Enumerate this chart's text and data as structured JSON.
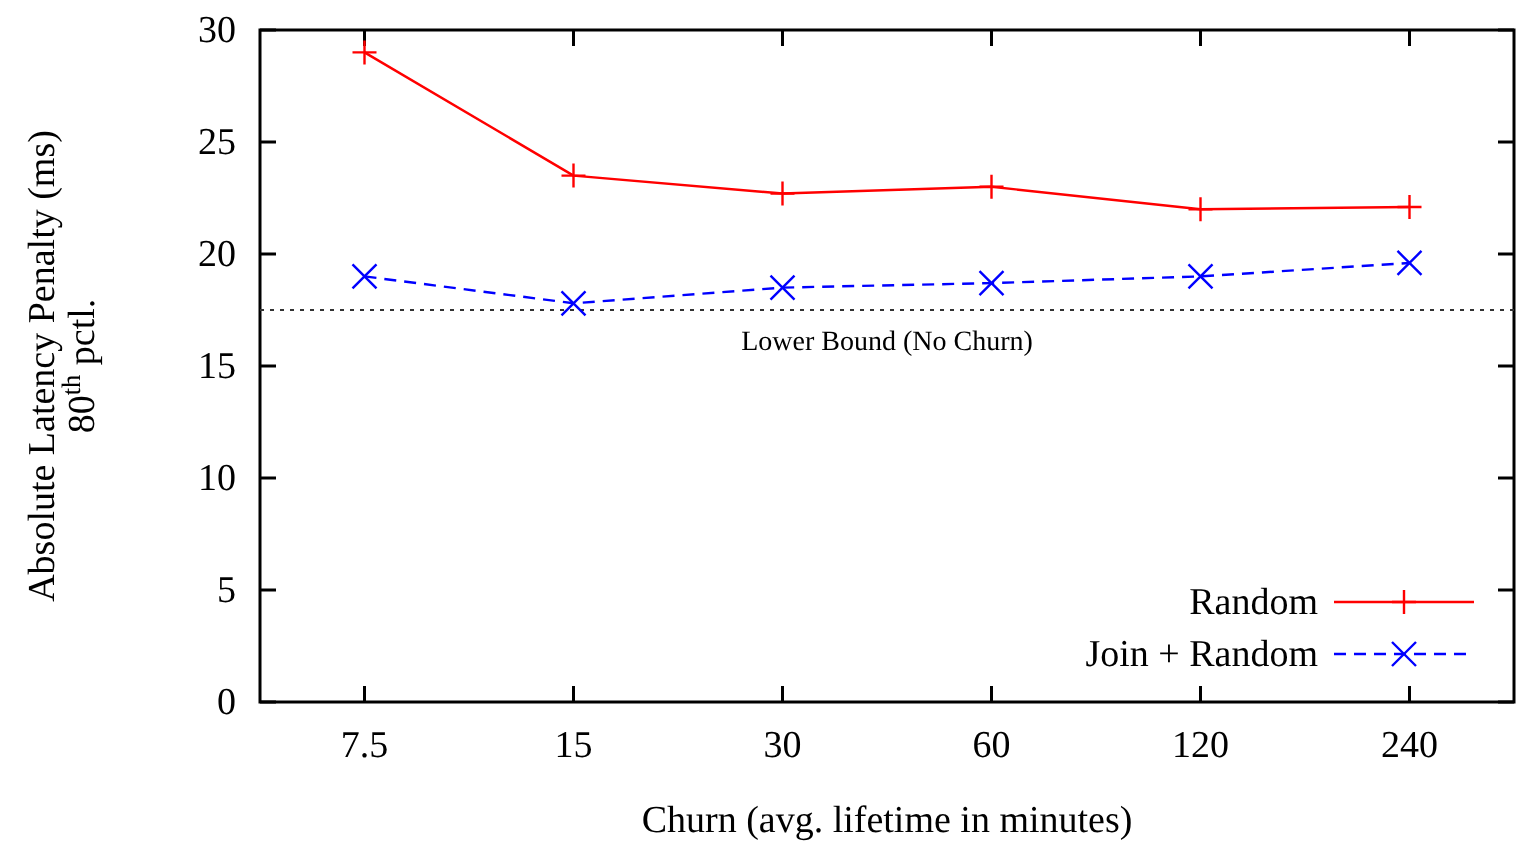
{
  "chart_data": {
    "type": "line",
    "xlabel": "Churn (avg. lifetime in minutes)",
    "ylabel": "Absolute Latency Penalty (ms)\n80$^{th}$ pctl.",
    "categories": [
      "7.5",
      "15",
      "30",
      "60",
      "120",
      "240"
    ],
    "series": [
      {
        "name": "Random",
        "color": "#ff0000",
        "marker": "cross",
        "line_style": "solid",
        "values": [
          29.0,
          23.5,
          22.7,
          23.0,
          22.0,
          22.1
        ]
      },
      {
        "name": "Join + Random",
        "color": "#0000ff",
        "marker": "x",
        "line_style": "dashed",
        "values": [
          19.0,
          17.8,
          18.5,
          18.7,
          19.0,
          19.6
        ]
      }
    ],
    "ylim": [
      0,
      30
    ],
    "yticks": [
      0,
      5,
      10,
      15,
      20,
      25,
      30
    ],
    "grid": false,
    "legend": "bottom right",
    "ref_lines": [
      {
        "axis": "y",
        "value": 17.5,
        "label": "Lower Bound (No Churn)",
        "color": "#333333",
        "line_style": "dotted"
      }
    ]
  }
}
